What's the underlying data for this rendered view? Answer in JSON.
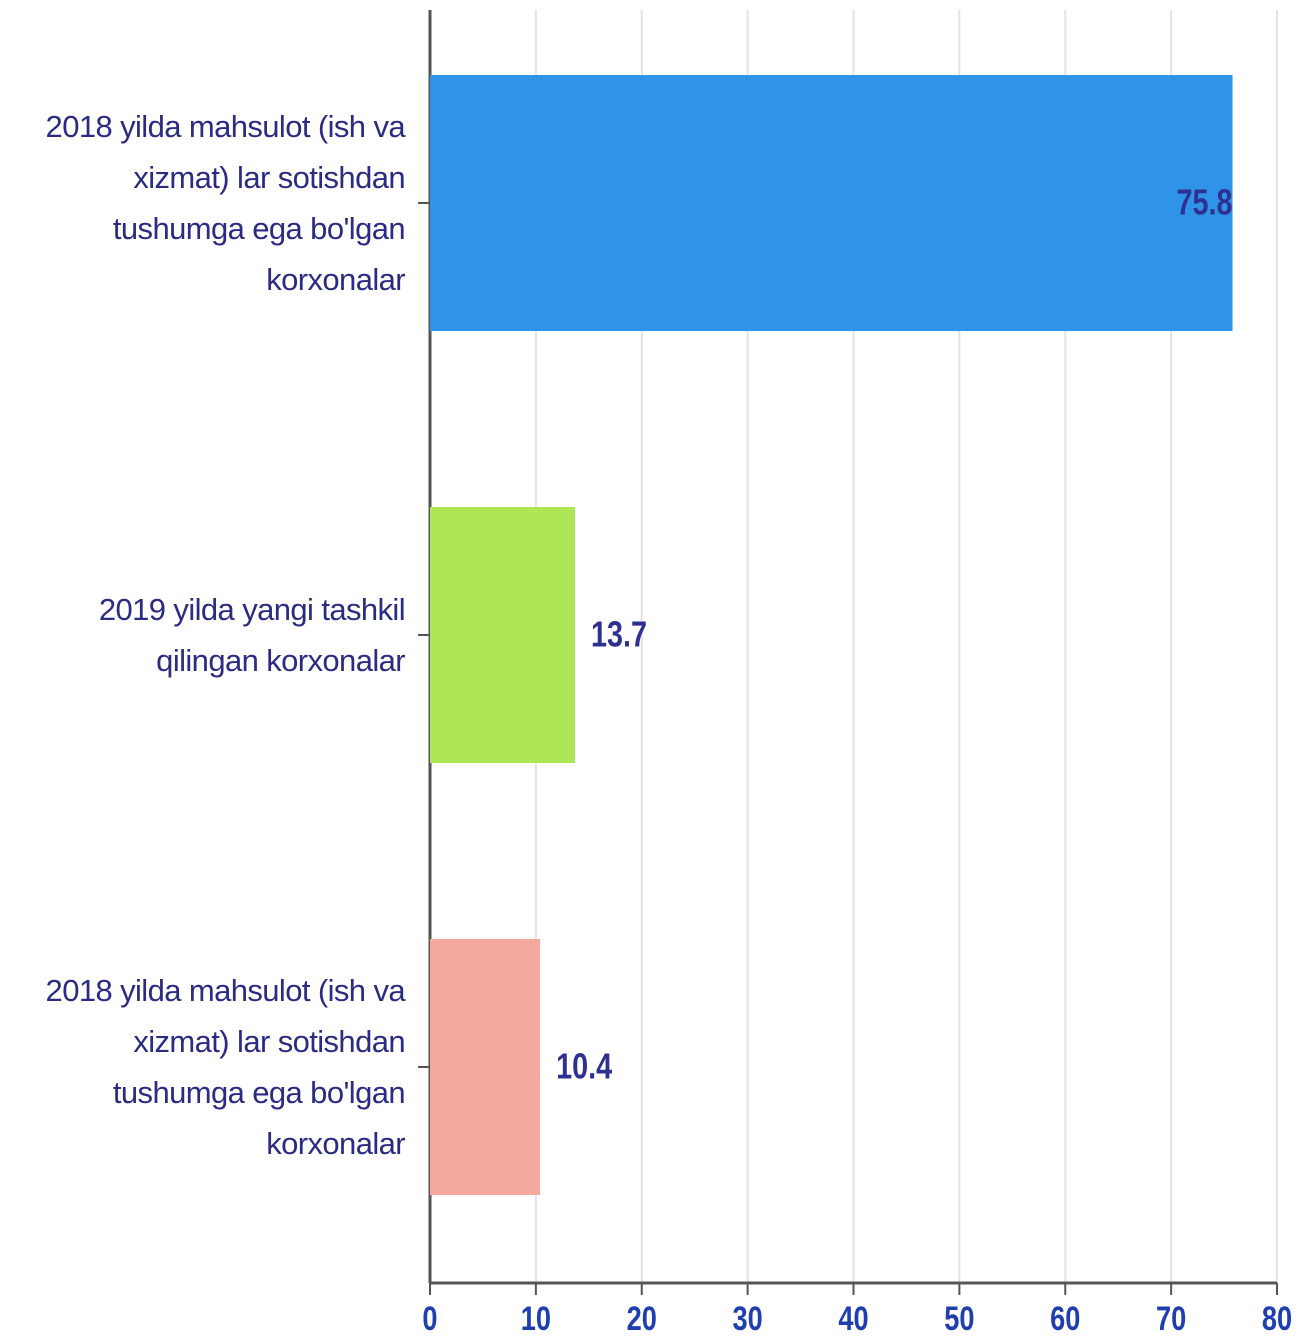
{
  "chart_data": {
    "type": "bar",
    "orientation": "horizontal",
    "categories": [
      "2018 yilda mahsulot (ish va xizmat) lar sotishdan tushumga ega bo'lgan korxonalar",
      "2019 yilda yangi tashkil qilingan korxonalar",
      "2018 yilda mahsulot (ish va xizmat) lar sotishdan tushumga ega bo'lgan korxonalar"
    ],
    "values": [
      75.8,
      13.7,
      10.4
    ],
    "colors": [
      "#2f93e8",
      "#aee657",
      "#f4a89e"
    ],
    "xlim": [
      0,
      80
    ],
    "xticks": [
      0,
      10,
      20,
      30,
      40,
      50,
      60,
      70,
      80
    ],
    "grid": true
  }
}
